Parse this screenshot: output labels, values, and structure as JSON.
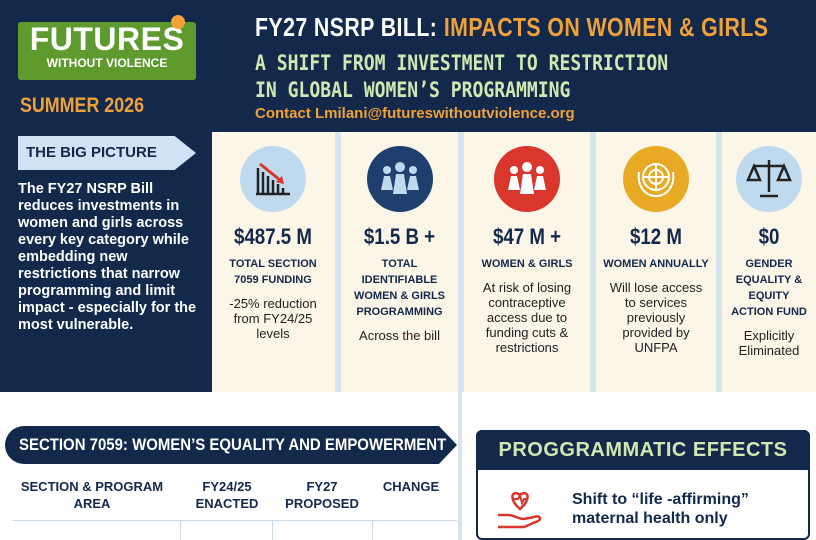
{
  "header": {
    "logo": {
      "line1": "FUTURES",
      "line2": "WITHOUT VIOLENCE"
    },
    "season": "SUMMER 2026",
    "title_prefix": "FY27 NSRP BILL:",
    "title_highlight": "IMPACTS ON WOMEN & GIRLS",
    "subtitle_lines": [
      "A SHIFT FROM INVESTMENT TO RESTRICTION",
      "IN GLOBAL WOMEN’S PROGRAMMING"
    ],
    "contact": "Contact Lmilani@futureswithoutviolence.org"
  },
  "big_picture": {
    "label": "THE BIG PICTURE",
    "text": "The FY27 NSRP Bill reduces investments in women and girls across every key category while embedding new restrictions that narrow programming and limit impact - especially for the most vulnerable."
  },
  "stats": [
    {
      "amount": "$487.5 M",
      "label": "TOTAL SECTION 7059 FUNDING",
      "note": "-25% reduction from FY24/25 levels"
    },
    {
      "amount": "$1.5 B +",
      "label": "TOTAL IDENTIFIABLE WOMEN & GIRLS PROGRAMMING",
      "note": "Across the bill"
    },
    {
      "amount": "$47 M +",
      "label": "WOMEN & GIRLS",
      "note": "At risk of losing contraceptive access due to funding cuts & restrictions"
    },
    {
      "amount": "$12 M",
      "label": "WOMEN ANNUALLY",
      "note": "Will lose access to services previously provided by UNFPA"
    },
    {
      "amount": "$0",
      "label": "GENDER EQUALITY & EQUITY ACTION FUND",
      "note": "Explicitly Eliminated"
    }
  ],
  "section_7059": {
    "title": "SECTION 7059: WOMEN’S EQUALITY AND EMPOWERMENT",
    "columns": [
      "SECTION & PROGRAM AREA",
      "FY24/25 ENACTED",
      "FY27 PROPOSED",
      "CHANGE"
    ]
  },
  "programmatic_effects": {
    "title": "PROGGRAMMATIC EFFECTS",
    "items": [
      "Shift to “life -affirming” maternal health only"
    ]
  }
}
